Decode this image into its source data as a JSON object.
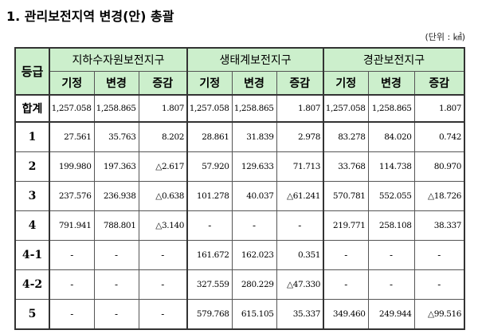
{
  "title": "1. 관리보전지역 변경(안) 총괄",
  "unit": "(단위 : ㎢)",
  "table": {
    "grade_header": "등급",
    "groups": [
      "지하수자원보전지구",
      "생태계보전지구",
      "경관보전지구"
    ],
    "sub_headers": [
      "기정",
      "변경",
      "증감"
    ],
    "rows": [
      {
        "grade": "합계",
        "values": [
          "1,257.058",
          "1,258.865",
          "1.807",
          "1,257.058",
          "1,258.865",
          "1.807",
          "1,257.058",
          "1,258.865",
          "1.807"
        ]
      },
      {
        "grade": "1",
        "values": [
          "27.561",
          "35.763",
          "8.202",
          "28.861",
          "31.839",
          "2.978",
          "83.278",
          "84.020",
          "0.742"
        ]
      },
      {
        "grade": "2",
        "values": [
          "199.980",
          "197.363",
          "△2.617",
          "57.920",
          "129.633",
          "71.713",
          "33.768",
          "114.738",
          "80.970"
        ]
      },
      {
        "grade": "3",
        "values": [
          "237.576",
          "236.938",
          "△0.638",
          "101.278",
          "40.037",
          "△61.241",
          "570.781",
          "552.055",
          "△18.726"
        ]
      },
      {
        "grade": "4",
        "values": [
          "791.941",
          "788.801",
          "△3.140",
          "-",
          "-",
          "-",
          "219.771",
          "258.108",
          "38.337"
        ]
      },
      {
        "grade": "4-1",
        "values": [
          "-",
          "-",
          "-",
          "161.672",
          "162.023",
          "0.351",
          "-",
          "-",
          "-"
        ]
      },
      {
        "grade": "4-2",
        "values": [
          "-",
          "-",
          "-",
          "327.559",
          "280.229",
          "△47.330",
          "-",
          "-",
          "-"
        ]
      },
      {
        "grade": "5",
        "values": [
          "-",
          "-",
          "-",
          "579.768",
          "615.105",
          "35.337",
          "349.460",
          "249.944",
          "△99.516"
        ]
      }
    ]
  }
}
